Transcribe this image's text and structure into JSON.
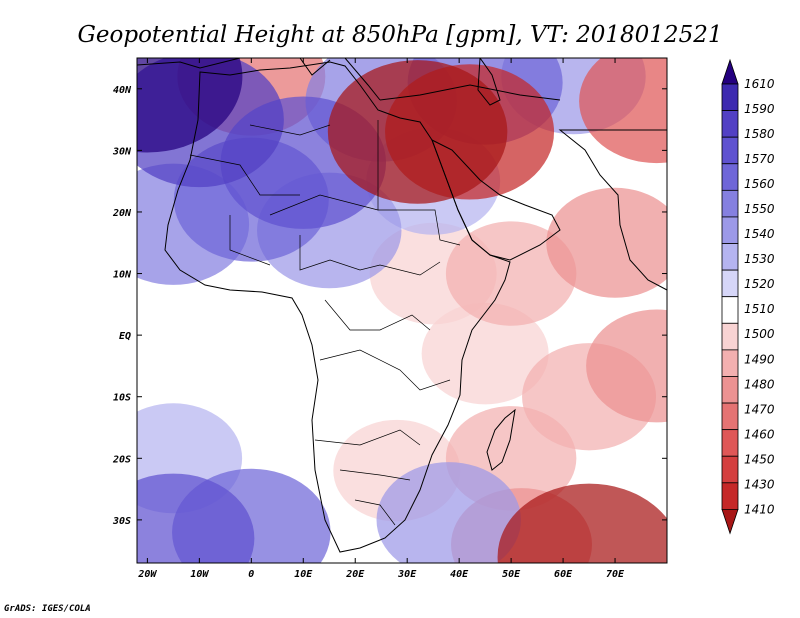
{
  "title": "Geopotential Height at 850hPa [gpm], VT: 2018012521",
  "credit": "GrADS: IGES/COLA",
  "x_ticks": [
    "20W",
    "10W",
    "0",
    "10E",
    "20E",
    "30E",
    "40E",
    "50E",
    "60E",
    "70E"
  ],
  "y_ticks": [
    "40N",
    "30N",
    "20N",
    "10N",
    "EQ",
    "10S",
    "20S",
    "30S"
  ],
  "colorbar": {
    "labels": [
      "1610",
      "1590",
      "1580",
      "1570",
      "1560",
      "1550",
      "1540",
      "1530",
      "1520",
      "1510",
      "1500",
      "1490",
      "1480",
      "1470",
      "1460",
      "1450",
      "1430",
      "1410"
    ],
    "colors": [
      "#24007f",
      "#3d2ab0",
      "#5240c4",
      "#5f52d0",
      "#6f66d8",
      "#8580e0",
      "#9c99e8",
      "#b5b4f0",
      "#d6d6f8",
      "#ffffff",
      "#f8d3d3",
      "#f3b0b0",
      "#ec9292",
      "#e57373",
      "#df5757",
      "#d43f3f",
      "#c52828",
      "#a81616"
    ]
  },
  "chart_data": {
    "type": "heatmap",
    "title": "Geopotential Height at 850hPa [gpm], VT: 2018012521",
    "variable": "Geopotential Height at 850hPa",
    "units": "gpm",
    "valid_time": "2018012521",
    "x_range": [
      -22,
      80
    ],
    "y_range": [
      -37,
      45
    ],
    "x_ticks": [
      -20,
      -10,
      0,
      10,
      20,
      30,
      40,
      50,
      60,
      70
    ],
    "y_ticks": [
      40,
      30,
      20,
      10,
      0,
      -10,
      -20,
      -30
    ],
    "levels": [
      1410,
      1430,
      1450,
      1460,
      1470,
      1480,
      1490,
      1500,
      1510,
      1520,
      1530,
      1540,
      1550,
      1560,
      1570,
      1580,
      1590,
      1610
    ],
    "blobs": [
      {
        "lon": -20,
        "lat": 42,
        "value": 1610
      },
      {
        "lon": -10,
        "lat": 35,
        "value": 1580
      },
      {
        "lon": 10,
        "lat": 28,
        "value": 1575
      },
      {
        "lon": 0,
        "lat": 22,
        "value": 1560
      },
      {
        "lon": -15,
        "lat": 18,
        "value": 1555
      },
      {
        "lon": 15,
        "lat": 17,
        "value": 1545
      },
      {
        "lon": 25,
        "lat": 38,
        "value": 1555
      },
      {
        "lon": 45,
        "lat": 41,
        "value": 1560
      },
      {
        "lon": 62,
        "lat": 42,
        "value": 1545
      },
      {
        "lon": 0,
        "lat": 42,
        "value": 1470
      },
      {
        "lon": 32,
        "lat": 33,
        "value": 1425
      },
      {
        "lon": 42,
        "lat": 33,
        "value": 1440
      },
      {
        "lon": 78,
        "lat": 38,
        "value": 1460
      },
      {
        "lon": 35,
        "lat": 25,
        "value": 1530
      },
      {
        "lon": 35,
        "lat": 10,
        "value": 1500
      },
      {
        "lon": 50,
        "lat": 10,
        "value": 1495
      },
      {
        "lon": 70,
        "lat": 15,
        "value": 1485
      },
      {
        "lon": 78,
        "lat": -5,
        "value": 1480
      },
      {
        "lon": 65,
        "lat": -10,
        "value": 1490
      },
      {
        "lon": 50,
        "lat": -20,
        "value": 1495
      },
      {
        "lon": 45,
        "lat": -3,
        "value": 1500
      },
      {
        "lon": 28,
        "lat": -22,
        "value": 1500
      },
      {
        "lon": 15,
        "lat": -15,
        "value": 1510
      },
      {
        "lon": 65,
        "lat": -36,
        "value": 1420
      },
      {
        "lon": 52,
        "lat": -34,
        "value": 1480
      },
      {
        "lon": -15,
        "lat": -33,
        "value": 1570
      },
      {
        "lon": 0,
        "lat": -32,
        "value": 1565
      },
      {
        "lon": 38,
        "lat": -30,
        "value": 1545
      },
      {
        "lon": -15,
        "lat": -20,
        "value": 1535
      },
      {
        "lon": -18,
        "lat": 5,
        "value": 1512
      },
      {
        "lon": 10,
        "lat": 5,
        "value": 1515
      }
    ]
  }
}
